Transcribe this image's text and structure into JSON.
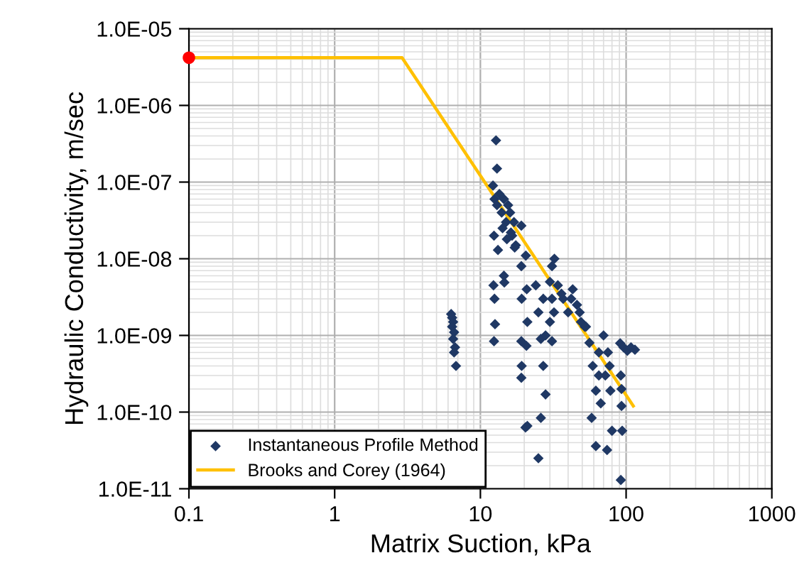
{
  "chart_data": {
    "type": "scatter",
    "xlabel": "Matrix Suction, kPa",
    "ylabel": "Hydraulic Conductivity, m/sec",
    "log": "xy",
    "grid": true,
    "legend": "bottom left",
    "xlim": [
      0.1,
      1000
    ],
    "xticks": [
      0.1,
      1,
      10,
      100,
      1000
    ],
    "ylim": [
      1e-11,
      1e-05
    ],
    "yticks": [
      {
        "value": 1e-11,
        "label": "1.0E-11"
      },
      {
        "value": 1e-10,
        "label": "1.0E-10"
      },
      {
        "value": 1e-09,
        "label": "1.0E-09"
      },
      {
        "value": 1e-08,
        "label": "1.0E-08"
      },
      {
        "value": 1e-07,
        "label": "1.0E-07"
      },
      {
        "value": 1e-06,
        "label": "1.0E-06"
      },
      {
        "value": 1e-05,
        "label": "1.0E-05"
      }
    ],
    "series": [
      {
        "name": "Instantaneous Profile Method",
        "marker": "diamond",
        "color": "#1f3864",
        "x": [
          6.3,
          6.4,
          6.5,
          6.4,
          6.6,
          6.5,
          6.7,
          6.6,
          6.8,
          12.8,
          13,
          12.2,
          12.5,
          13,
          13.5,
          14,
          14.5,
          15,
          15.5,
          16,
          16.5,
          17,
          17.5,
          12.4,
          13.2,
          14.2,
          15.2,
          16.2,
          17.2,
          12.3,
          12.5,
          12.6,
          12.4,
          14.5,
          14.6,
          19.1,
          19.1,
          19.2,
          19.1,
          19.2,
          19.1,
          20.4,
          20.5,
          20.8,
          21,
          20.7,
          21,
          24,
          25,
          26,
          27,
          28,
          26,
          25,
          27,
          28,
          30,
          31,
          32.2,
          31,
          30,
          32,
          31,
          34,
          37,
          40,
          43,
          46,
          49,
          52,
          36,
          42,
          48,
          53,
          56,
          59,
          62,
          65,
          67,
          58,
          62,
          65,
          70,
          75,
          72,
          78,
          80,
          74,
          77,
          91,
          96,
          102,
          108,
          115,
          92,
          93,
          94,
          92,
          93
        ],
        "values": [
          1.9e-09,
          1.7e-09,
          1.5e-09,
          1.3e-09,
          1.1e-09,
          9e-10,
          7e-10,
          6e-10,
          4e-10,
          3.5e-07,
          1.5e-07,
          9e-08,
          6e-08,
          5e-08,
          7e-08,
          4e-08,
          6e-08,
          3e-08,
          5e-08,
          4e-08,
          2e-08,
          3e-08,
          1.5e-08,
          2e-08,
          1.3e-08,
          2.5e-08,
          1.8e-08,
          2.2e-08,
          1.4e-08,
          4.5e-09,
          3e-09,
          1.4e-09,
          8.4e-10,
          6e-09,
          4.9e-09,
          2.7e-08,
          8e-09,
          3e-09,
          8.4e-10,
          4e-10,
          2.8e-10,
          6.3e-11,
          1.1e-08,
          4e-09,
          1.5e-09,
          7.3e-10,
          6.6e-11,
          4.5e-09,
          2e-09,
          9e-10,
          4e-10,
          1.7e-10,
          8.4e-11,
          2.5e-11,
          3e-09,
          1e-09,
          5e-09,
          8e-09,
          1e-08,
          3e-09,
          1.5e-09,
          2e-09,
          8.4e-10,
          4.5e-09,
          3e-09,
          2e-09,
          4e-09,
          2.5e-09,
          1.5e-09,
          1.3e-09,
          3.5e-09,
          3e-09,
          2e-09,
          1.3e-09,
          8e-10,
          4e-10,
          1.9e-10,
          3e-10,
          1.3e-10,
          8.4e-11,
          3.6e-11,
          6e-10,
          1e-09,
          6e-10,
          3e-10,
          1.9e-10,
          5.7e-11,
          3.2e-11,
          4e-10,
          7.9e-10,
          7e-10,
          6.3e-10,
          7e-10,
          6.5e-10,
          3e-10,
          1.2e-10,
          5.7e-11,
          1.3e-11,
          2e-10
        ]
      },
      {
        "name": "Brooks and Corey (1964)",
        "type": "line",
        "color": "#ffc000",
        "x": [
          0.1,
          2.9,
          112
        ],
        "values": [
          4.2e-06,
          4.2e-06,
          1.2e-10
        ]
      },
      {
        "color": "#ff0000",
        "marker": "circle",
        "x": [
          0.1
        ],
        "values": [
          4.2e-06
        ]
      }
    ]
  }
}
